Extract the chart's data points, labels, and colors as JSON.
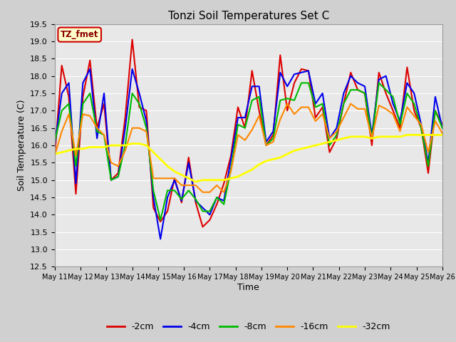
{
  "title": "Tonzi Soil Temperatures Set C",
  "xlabel": "Time",
  "ylabel": "Soil Temperature (C)",
  "ylim": [
    12.5,
    19.5
  ],
  "yticks": [
    12.5,
    13.0,
    13.5,
    14.0,
    14.5,
    15.0,
    15.5,
    16.0,
    16.5,
    17.0,
    17.5,
    18.0,
    18.5,
    19.0,
    19.5
  ],
  "fig_bg_color": "#d0d0d0",
  "plot_bg_color": "#e8e8e8",
  "legend_label": "TZ_fmet",
  "legend_box_facecolor": "#ffffcc",
  "legend_box_edgecolor": "#cc0000",
  "series_order": [
    "-2cm",
    "-4cm",
    "-8cm",
    "-16cm",
    "-32cm"
  ],
  "series": {
    "-2cm": {
      "color": "#dd0000",
      "lw": 1.5
    },
    "-4cm": {
      "color": "#0000ee",
      "lw": 1.5
    },
    "-8cm": {
      "color": "#00bb00",
      "lw": 1.5
    },
    "-16cm": {
      "color": "#ff8800",
      "lw": 1.5
    },
    "-32cm": {
      "color": "#ffff00",
      "lw": 2.0
    }
  },
  "xtick_labels": [
    "May 11",
    "May 12",
    "May 13",
    "May 14",
    "May 15",
    "May 16",
    "May 17",
    "May 18",
    "May 19",
    "May 20",
    "May 21",
    "May 22",
    "May 23",
    "May 24",
    "May 25",
    "May 26"
  ],
  "data_2cm": [
    15.7,
    18.3,
    17.4,
    14.6,
    17.4,
    18.45,
    16.5,
    17.2,
    15.0,
    15.2,
    16.8,
    19.05,
    17.1,
    17.0,
    14.2,
    13.8,
    14.1,
    15.05,
    14.35,
    15.65,
    14.35,
    13.65,
    13.85,
    14.3,
    14.9,
    15.7,
    17.1,
    16.5,
    18.15,
    17.0,
    16.0,
    16.3,
    18.6,
    17.0,
    17.8,
    18.2,
    18.15,
    16.8,
    17.1,
    15.8,
    16.2,
    17.2,
    18.1,
    17.6,
    17.5,
    16.0,
    18.1,
    17.5,
    17.0,
    16.5,
    18.25,
    17.0,
    16.5,
    15.2,
    17.0,
    16.6
  ],
  "data_4cm": [
    16.0,
    17.5,
    17.8,
    14.9,
    17.8,
    18.2,
    16.2,
    17.5,
    15.0,
    15.1,
    16.5,
    18.2,
    17.5,
    16.7,
    14.5,
    13.3,
    14.5,
    15.0,
    14.4,
    15.5,
    14.4,
    14.2,
    14.0,
    14.5,
    14.4,
    15.6,
    16.8,
    16.8,
    17.7,
    17.7,
    16.1,
    16.4,
    18.1,
    17.7,
    18.05,
    18.1,
    18.15,
    17.2,
    17.5,
    16.2,
    16.5,
    17.5,
    18.0,
    17.8,
    17.7,
    16.3,
    17.9,
    18.0,
    17.2,
    16.7,
    17.8,
    17.5,
    16.6,
    15.5,
    17.4,
    16.5
  ],
  "data_8cm": [
    16.1,
    17.0,
    17.2,
    15.4,
    17.2,
    17.5,
    16.4,
    16.3,
    15.0,
    15.1,
    16.0,
    17.5,
    17.2,
    16.5,
    14.7,
    13.85,
    14.7,
    14.7,
    14.45,
    14.7,
    14.45,
    14.1,
    14.1,
    14.5,
    14.3,
    15.3,
    16.6,
    16.5,
    17.3,
    17.4,
    16.0,
    16.2,
    17.3,
    17.35,
    17.3,
    17.8,
    17.8,
    17.1,
    17.2,
    16.0,
    16.3,
    17.2,
    17.6,
    17.6,
    17.5,
    16.2,
    17.8,
    17.6,
    17.4,
    16.6,
    17.5,
    17.2,
    16.5,
    15.4,
    17.0,
    16.5
  ],
  "data_16cm": [
    15.7,
    16.4,
    16.9,
    15.7,
    16.9,
    16.85,
    16.5,
    16.3,
    15.5,
    15.4,
    15.85,
    16.5,
    16.5,
    16.4,
    15.05,
    15.05,
    15.05,
    15.05,
    14.85,
    14.85,
    14.85,
    14.65,
    14.65,
    14.85,
    14.65,
    15.25,
    16.3,
    16.15,
    16.45,
    16.85,
    16.0,
    16.1,
    16.75,
    17.2,
    16.9,
    17.1,
    17.1,
    16.7,
    16.9,
    16.2,
    16.4,
    16.8,
    17.2,
    17.05,
    17.05,
    16.2,
    17.15,
    17.05,
    16.9,
    16.4,
    17.1,
    16.85,
    16.6,
    15.8,
    16.7,
    16.35
  ],
  "data_32cm": [
    15.75,
    15.8,
    15.85,
    15.9,
    15.9,
    15.95,
    15.95,
    15.95,
    16.0,
    16.0,
    16.0,
    16.05,
    16.05,
    16.0,
    15.8,
    15.6,
    15.4,
    15.25,
    15.15,
    15.05,
    14.95,
    15.0,
    15.0,
    15.0,
    15.0,
    15.05,
    15.1,
    15.2,
    15.3,
    15.45,
    15.55,
    15.6,
    15.65,
    15.75,
    15.85,
    15.9,
    15.95,
    16.0,
    16.05,
    16.1,
    16.15,
    16.2,
    16.25,
    16.25,
    16.25,
    16.2,
    16.25,
    16.25,
    16.25,
    16.25,
    16.3,
    16.3,
    16.3,
    16.3,
    16.3,
    16.3
  ]
}
